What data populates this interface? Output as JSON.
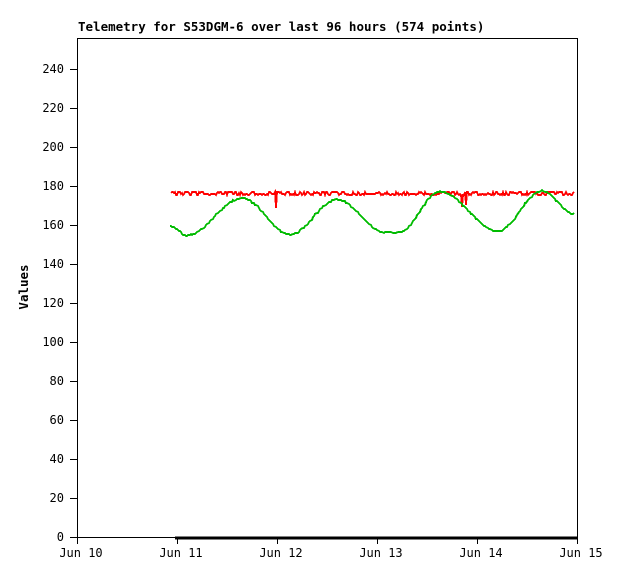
{
  "window": {
    "title": "Telemetry for S53DGM-6 over last 96 hours (574 points)"
  },
  "chart_data": {
    "type": "line",
    "title": "Telemetry for S53DGM-6 over last 96 hours (574 points)",
    "xlabel": "",
    "ylabel": "Values",
    "grid": false,
    "legend": "none",
    "background": "#ffffff",
    "axis_color": "#000000",
    "ylim": [
      0,
      256
    ],
    "yticks": [
      0,
      20,
      40,
      60,
      80,
      100,
      120,
      140,
      160,
      180,
      200,
      220,
      240
    ],
    "xlim_days": [
      0,
      5
    ],
    "x_tick_days": [
      0,
      1,
      2,
      3,
      4,
      5
    ],
    "x_tick_labels": [
      "Jun 10",
      "Jun 11",
      "Jun 12",
      "Jun 13",
      "Jun 14",
      "Jun 15"
    ],
    "points_count": 574,
    "hours_span": 96,
    "series": [
      {
        "name": "red-telemetry",
        "color": "#ff0000",
        "shape": "noisy-flat",
        "stroke_width": 1.8,
        "base_value": 175.7,
        "bump_value": 176.8,
        "start_day": 0.94,
        "end_day": 4.97,
        "dips": [
          {
            "day": 1.99,
            "value": 169.0
          },
          {
            "day": 3.85,
            "value": 169.5
          },
          {
            "day": 3.89,
            "value": 170.5
          }
        ]
      },
      {
        "name": "green-telemetry",
        "color": "#00bb00",
        "shape": "smooth-keypoints",
        "stroke_width": 2,
        "keypoints": [
          [
            0.93,
            159.5
          ],
          [
            1.1,
            154.8
          ],
          [
            1.65,
            173.8
          ],
          [
            2.13,
            155.2
          ],
          [
            2.6,
            173.0
          ],
          [
            3.08,
            156.2
          ],
          [
            3.22,
            156.4
          ],
          [
            3.63,
            177.2
          ],
          [
            4.21,
            157.0
          ],
          [
            4.65,
            177.5
          ],
          [
            4.97,
            166.0
          ]
        ]
      },
      {
        "name": "black-baseline",
        "color": "#000000",
        "shape": "flat",
        "stroke_width": 3,
        "value": 0,
        "start_day": 0.98,
        "end_day": 5.0
      }
    ]
  }
}
